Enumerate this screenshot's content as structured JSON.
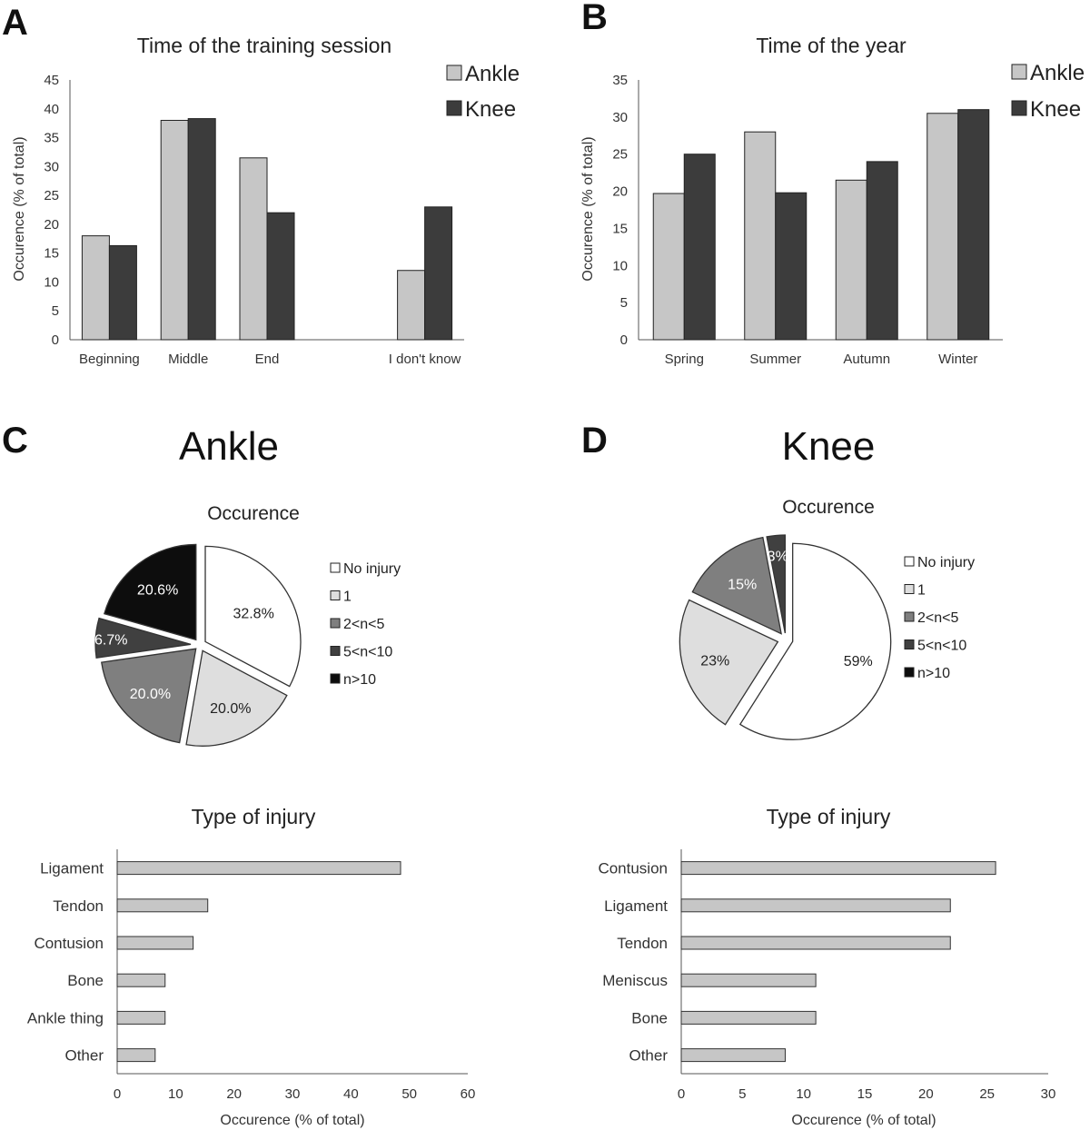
{
  "panels": {
    "A": "A",
    "B": "B",
    "C": "C",
    "D": "D"
  },
  "colors": {
    "ankle": "#c6c6c6",
    "knee": "#3c3c3c",
    "type_bar": "#c6c6c6"
  },
  "chart_data": [
    {
      "id": "A",
      "type": "bar",
      "title": "Time of the training session",
      "categories": [
        "Beginning",
        "Middle",
        "End",
        "",
        "I don't know"
      ],
      "series": [
        {
          "name": "Ankle",
          "values": [
            18,
            38,
            31.5,
            null,
            12
          ]
        },
        {
          "name": "Knee",
          "values": [
            16.3,
            38.3,
            22,
            null,
            23
          ]
        }
      ],
      "xlabel": "",
      "ylabel": "Occurence (% of total)",
      "ylim": [
        0,
        45
      ],
      "yticks": [
        0,
        5,
        10,
        15,
        20,
        25,
        30,
        35,
        40,
        45
      ],
      "legend": "top-right"
    },
    {
      "id": "B",
      "type": "bar",
      "title": "Time of the year",
      "categories": [
        "Spring",
        "Summer",
        "Autumn",
        "Winter"
      ],
      "series": [
        {
          "name": "Ankle",
          "values": [
            19.7,
            28,
            21.5,
            30.5
          ]
        },
        {
          "name": "Knee",
          "values": [
            25,
            19.8,
            24,
            31
          ]
        }
      ],
      "xlabel": "",
      "ylabel": "Occurence (% of total)",
      "ylim": [
        0,
        35
      ],
      "yticks": [
        0,
        5,
        10,
        15,
        20,
        25,
        30,
        35
      ],
      "legend": "top-right"
    },
    {
      "id": "C-pie",
      "type": "pie",
      "group_title": "Ankle",
      "title": "Occurence",
      "slices": [
        {
          "label": "No injury",
          "value": 32.8,
          "text": "32.8%",
          "color": "#ffffff"
        },
        {
          "label": "1",
          "value": 20.0,
          "text": "20.0%",
          "color": "#dedede"
        },
        {
          "label": "2<n<5",
          "value": 20.0,
          "text": "20.0%",
          "color": "#7f7f7f"
        },
        {
          "label": "5<n<10",
          "value": 6.7,
          "text": "6.7%",
          "color": "#404040"
        },
        {
          "label": "n>10",
          "value": 20.6,
          "text": "20.6%",
          "color": "#0d0d0d"
        }
      ],
      "legend": "right"
    },
    {
      "id": "D-pie",
      "type": "pie",
      "group_title": "Knee",
      "title": "Occurence",
      "slices": [
        {
          "label": "No injury",
          "value": 59,
          "text": "59%",
          "color": "#ffffff"
        },
        {
          "label": "1",
          "value": 23,
          "text": "23%",
          "color": "#dedede"
        },
        {
          "label": "2<n<5",
          "value": 15,
          "text": "15%",
          "color": "#7f7f7f"
        },
        {
          "label": "5<n<10",
          "value": 3,
          "text": "3%",
          "color": "#404040"
        },
        {
          "label": "n>10",
          "value": 0,
          "text": "",
          "color": "#0d0d0d"
        }
      ],
      "legend": "right"
    },
    {
      "id": "C-type",
      "type": "bar",
      "orientation": "horizontal",
      "title": "Type of injury",
      "categories": [
        "Ligament",
        "Tendon",
        "Contusion",
        "Bone",
        "Ankle thing",
        "Other"
      ],
      "values": [
        48.5,
        15.5,
        13,
        8.2,
        8.2,
        6.5
      ],
      "xlabel": "Occurence (% of total)",
      "xlim": [
        0,
        60
      ],
      "xticks": [
        0,
        10,
        20,
        30,
        40,
        50,
        60
      ]
    },
    {
      "id": "D-type",
      "type": "bar",
      "orientation": "horizontal",
      "title": "Type of injury",
      "categories": [
        "Contusion",
        "Ligament",
        "Tendon",
        "Meniscus",
        "Bone",
        "Other"
      ],
      "values": [
        25.7,
        22,
        22,
        11,
        11,
        8.5
      ],
      "xlabel": "Occurence (% of total)",
      "xlim": [
        0,
        30
      ],
      "xticks": [
        0,
        5,
        10,
        15,
        20,
        25,
        30
      ]
    }
  ]
}
